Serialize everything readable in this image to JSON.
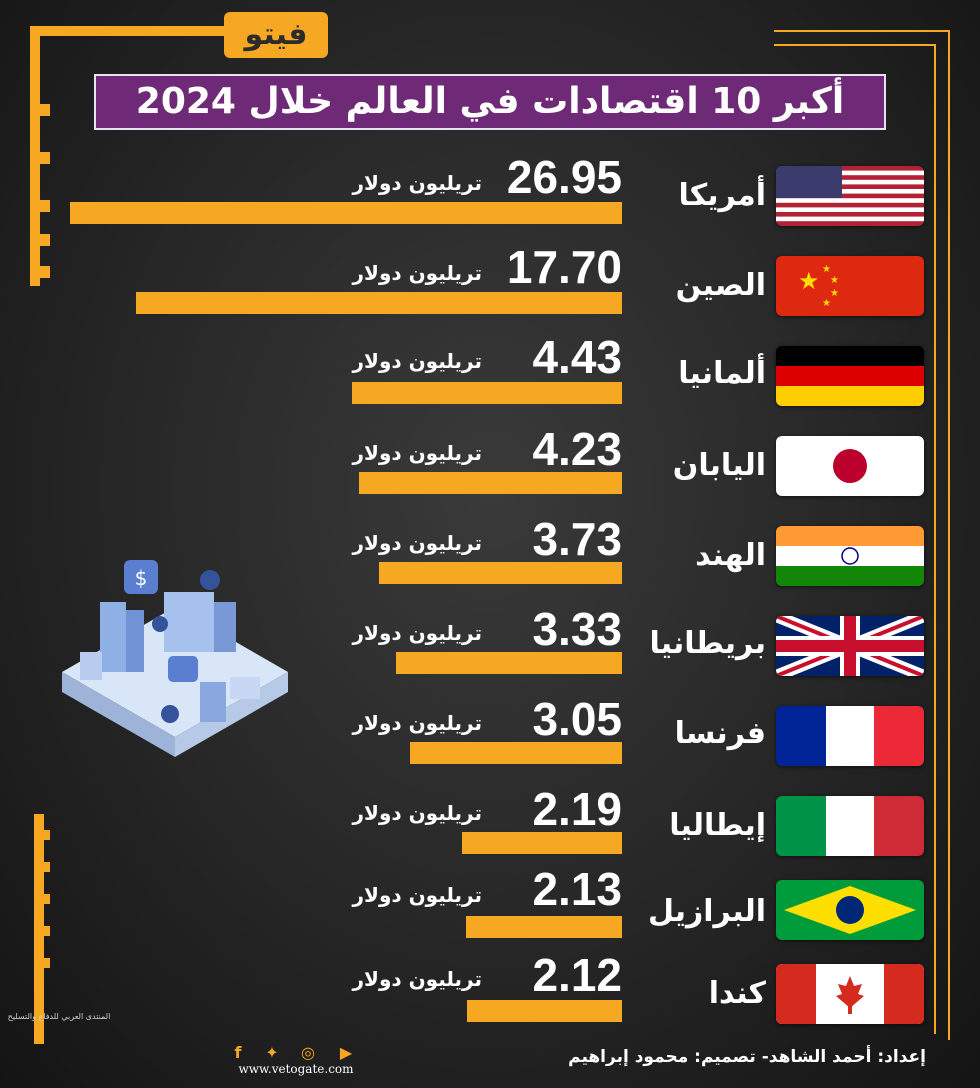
{
  "header": {
    "logo_text": "فيتو",
    "title": "أكبر 10 اقتصادات في العالم خلال 2024"
  },
  "chart_data": {
    "type": "bar",
    "orientation": "horizontal",
    "title": "أكبر 10 اقتصادات في العالم خلال 2024",
    "unit_label": "تريليون دولار",
    "categories": [
      "أمريكا",
      "الصين",
      "ألمانيا",
      "اليابان",
      "الهند",
      "بريطانيا",
      "فرنسا",
      "إيطاليا",
      "البرازيل",
      "كندا"
    ],
    "values": [
      26.95,
      17.7,
      4.43,
      4.23,
      3.73,
      3.33,
      3.05,
      2.19,
      2.13,
      2.12
    ],
    "value_labels": [
      "26.95",
      "17.70",
      "4.43",
      "4.23",
      "3.73",
      "3.33",
      "3.05",
      "2.19",
      "2.13",
      "2.12"
    ],
    "bar_color": "#f6a823",
    "flags": [
      "usa-flag-icon",
      "china-flag-icon",
      "germany-flag-icon",
      "japan-flag-icon",
      "india-flag-icon",
      "uk-flag-icon",
      "france-flag-icon",
      "italy-flag-icon",
      "brazil-flag-icon",
      "canada-flag-icon"
    ]
  },
  "footer": {
    "credit": "إعداد: أحمد الشاهد- تصميم: محمود إبراهيم",
    "website": "www.vetogate.com",
    "social_icons": [
      "youtube-icon",
      "instagram-icon",
      "twitter-icon",
      "facebook-icon"
    ],
    "forum_watermark": "المنتدى العربي للدفاع والتسليح"
  },
  "colors": {
    "accent": "#f6a823",
    "title_background": "#6e2a76",
    "background": "#262626"
  }
}
